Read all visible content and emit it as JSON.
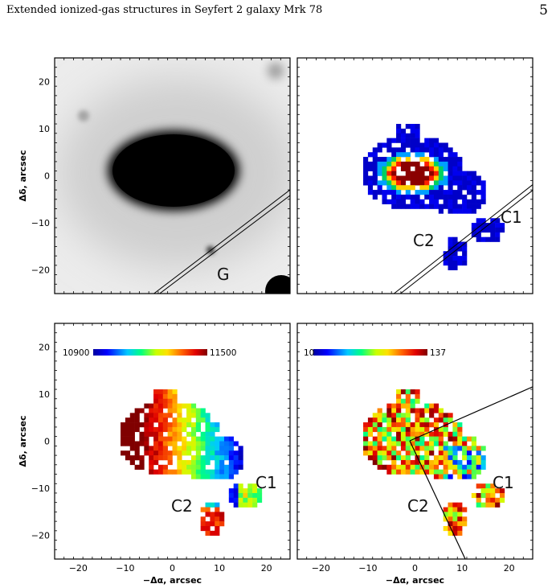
{
  "header": {
    "running_title": "Extended ionized-gas structures in Seyfert 2 galaxy Mrk 78",
    "page_number": "5"
  },
  "figure": {
    "axes": {
      "xlabel": "−Δα, arcsec",
      "ylabel": "Δδ, arcsec",
      "xticks": [
        "−20",
        "−10",
        "0",
        "10",
        "20"
      ],
      "yticks": [
        "20",
        "10",
        "0",
        "−10",
        "−20"
      ]
    },
    "panels": {
      "top_left": {
        "label_g": "G"
      },
      "top_right": {
        "label_c1": "C1",
        "label_c2": "C2"
      },
      "bottom_left": {
        "cbar_min": "10900",
        "cbar_max": "11500",
        "label_c1": "C1",
        "label_c2": "C2"
      },
      "bottom_right": {
        "cbar_min": "10",
        "cbar_max": "137",
        "label_c1": "C1",
        "label_c2": "C2"
      }
    }
  }
}
